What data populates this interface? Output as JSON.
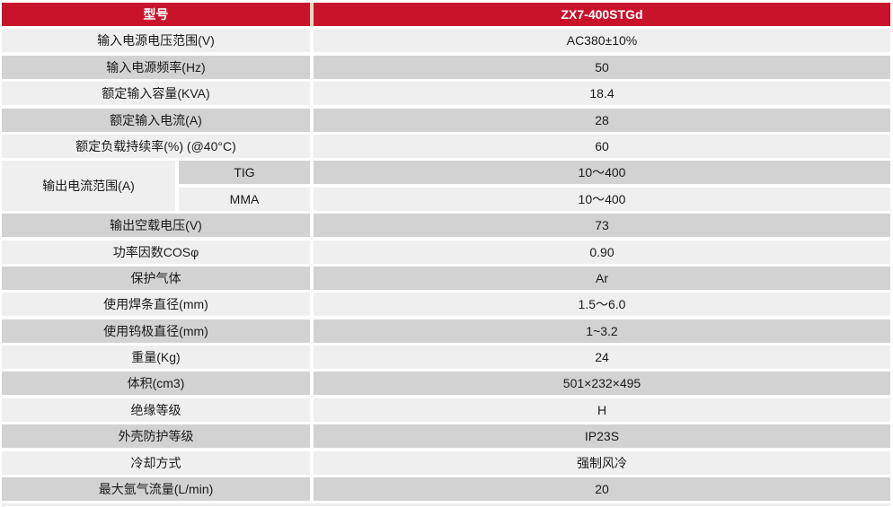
{
  "header": {
    "model_label": "型号",
    "model_value": "ZX7-400STGd"
  },
  "rows": [
    {
      "label": "输入电源电压范围(V)",
      "value": "AC380±10%"
    },
    {
      "label": "输入电源频率(Hz)",
      "value": "50"
    },
    {
      "label": "额定输入容量(KVA)",
      "value": "18.4"
    },
    {
      "label": "额定输入电流(A)",
      "value": "28"
    },
    {
      "label": "额定负载持续率(%) (@40°C)",
      "value": "60"
    },
    {
      "label": "输出空载电压(V)",
      "value": "73"
    },
    {
      "label": "功率因数COSφ",
      "value": "0.90"
    },
    {
      "label": "保护气体",
      "value": "Ar"
    },
    {
      "label": "使用焊条直径(mm)",
      "value": "1.5～6.0"
    },
    {
      "label": "使用钨极直径(mm)",
      "value": "1~3.2"
    },
    {
      "label": "重量(Kg)",
      "value": "24"
    },
    {
      "label": "体积(cm3)",
      "value": "501×232×495"
    },
    {
      "label": "绝缘等级",
      "value": "H"
    },
    {
      "label": "外壳防护等级",
      "value": "IP23S"
    },
    {
      "label": "冷却方式",
      "value": "强制风冷"
    },
    {
      "label": "最大氩气流量(L/min)",
      "value": "20"
    }
  ],
  "output_current_group": {
    "label": "输出电流范围(A)",
    "sub_rows": [
      {
        "label": "TIG",
        "value": "10～400"
      },
      {
        "label": "MMA",
        "value": "10～400"
      }
    ]
  },
  "colors": {
    "header_red": "#c9132b",
    "header_text": "#ffffff",
    "row_light": "#efefef",
    "row_dark": "#d2d2d2",
    "header_gutter_cream": "#e8dbc0",
    "gutter_white": "#ffffff",
    "body_text": "#1a1a1a"
  }
}
